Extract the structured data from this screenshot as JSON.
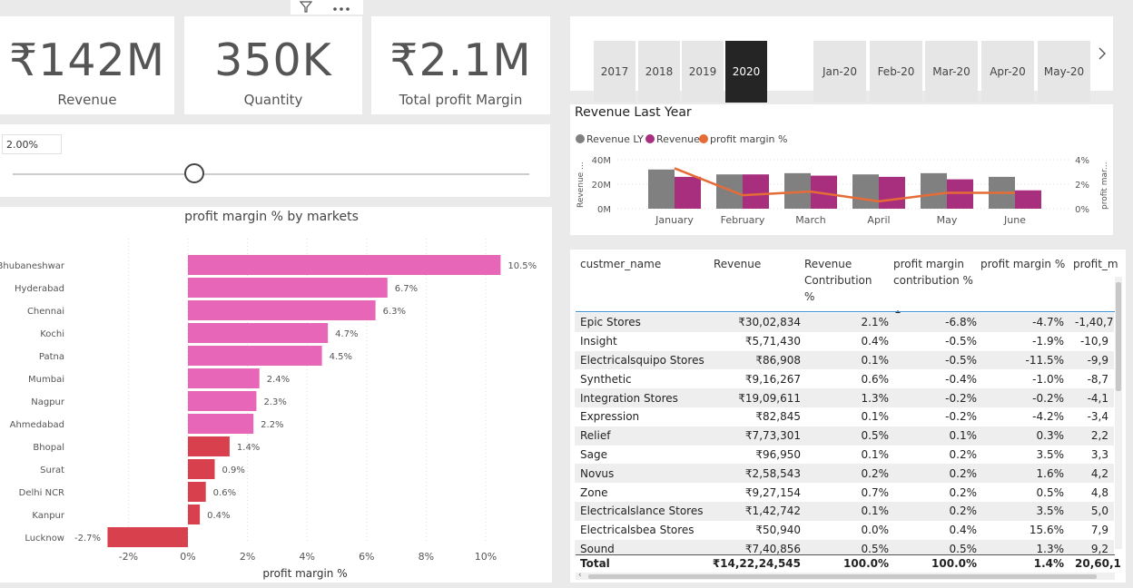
{
  "kpis": [
    {
      "value": "₹142M",
      "label": "Revenue"
    },
    {
      "value": "350K",
      "label": "Quantity"
    },
    {
      "value": "₹2.1M",
      "label": "Total profit Margin"
    }
  ],
  "slider": {
    "value_text": "2.00%"
  },
  "years": [
    "2017",
    "2018",
    "2019",
    "2020"
  ],
  "selected_year": "2020",
  "months": [
    "Jan-20",
    "Feb-20",
    "Mar-20",
    "Apr-20",
    "May-20"
  ],
  "bar_chart": {
    "title": "profit margin % by markets",
    "xlabel": "profit margin %"
  },
  "combo_chart": {
    "title": "Revenue Last Year",
    "ylabel_left": "Revenue ...",
    "ylabel_right": "profit mar..."
  },
  "colors": {
    "pink": "#e766b7",
    "red": "#d9404e",
    "gray": "#808080",
    "magenta": "#a72f7e",
    "orange": "#e66c37"
  },
  "table": {
    "headers": [
      "custmer_name",
      "Revenue",
      "Revenue Contribution %",
      "profit margin contribution %",
      "profit margin %",
      "profit_m"
    ],
    "rows": [
      [
        "Epic Stores",
        "₹30,02,834",
        "2.1%",
        "-6.8%",
        "-4.7%",
        "-1,40,7"
      ],
      [
        "Insight",
        "₹5,71,430",
        "0.4%",
        "-0.5%",
        "-1.9%",
        "-10,9"
      ],
      [
        "Electricalsquipo Stores",
        "₹86,908",
        "0.1%",
        "-0.5%",
        "-11.5%",
        "-9,9"
      ],
      [
        "Synthetic",
        "₹9,16,267",
        "0.6%",
        "-0.4%",
        "-1.0%",
        "-8,7"
      ],
      [
        "Integration Stores",
        "₹19,09,611",
        "1.3%",
        "-0.2%",
        "-0.2%",
        "-4,1"
      ],
      [
        "Expression",
        "₹82,845",
        "0.1%",
        "-0.2%",
        "-4.2%",
        "-3,4"
      ],
      [
        "Relief",
        "₹7,73,301",
        "0.5%",
        "0.1%",
        "0.3%",
        "2,2"
      ],
      [
        "Sage",
        "₹96,950",
        "0.1%",
        "0.2%",
        "3.5%",
        "3,3"
      ],
      [
        "Novus",
        "₹2,58,543",
        "0.2%",
        "0.2%",
        "1.6%",
        "4,2"
      ],
      [
        "Zone",
        "₹9,27,154",
        "0.7%",
        "0.2%",
        "0.5%",
        "4,8"
      ],
      [
        "Electricalslance Stores",
        "₹1,42,742",
        "0.1%",
        "0.2%",
        "3.5%",
        "5,0"
      ],
      [
        "Electricalsbea Stores",
        "₹50,940",
        "0.0%",
        "0.4%",
        "15.6%",
        "7,9"
      ],
      [
        "Sound",
        "₹7,40,856",
        "0.5%",
        "0.5%",
        "1.3%",
        "9,2"
      ]
    ],
    "total": [
      "Total",
      "₹14,22,24,545",
      "100.0%",
      "100.0%",
      "1.4%",
      "20,60,1"
    ]
  },
  "chart_data": [
    {
      "type": "bar",
      "title": "profit margin % by markets",
      "xlabel": "profit margin %",
      "categories": [
        "Bhubaneshwar",
        "Hyderabad",
        "Chennai",
        "Kochi",
        "Patna",
        "Mumbai",
        "Nagpur",
        "Ahmedabad",
        "Bhopal",
        "Surat",
        "Delhi NCR",
        "Kanpur",
        "Lucknow"
      ],
      "values": [
        10.5,
        6.7,
        6.3,
        4.7,
        4.5,
        2.4,
        2.3,
        2.2,
        1.4,
        0.9,
        0.6,
        0.4,
        -2.7
      ],
      "data_labels": [
        "10.5%",
        "6.7%",
        "6.3%",
        "4.7%",
        "4.5%",
        "2.4%",
        "2.3%",
        "2.2%",
        "1.4%",
        "0.9%",
        "0.6%",
        "0.4%",
        "-2.7%"
      ],
      "xticks": [
        "-2%",
        "0%",
        "2%",
        "4%",
        "6%",
        "8%",
        "10%"
      ],
      "xtick_values": [
        -2,
        0,
        2,
        4,
        6,
        8,
        10
      ],
      "xlim": [
        -3,
        11
      ],
      "threshold": 2.0,
      "grid": true
    },
    {
      "type": "bar",
      "title": "Revenue Last Year",
      "categories": [
        "January",
        "February",
        "March",
        "April",
        "May",
        "June"
      ],
      "series": [
        {
          "name": "Revenue LY",
          "values": [
            32,
            28,
            29,
            28,
            29,
            26
          ]
        },
        {
          "name": "Revenue",
          "values": [
            26,
            28,
            27,
            26,
            24,
            15
          ]
        },
        {
          "name": "profit margin %",
          "values": [
            3.3,
            1.1,
            1.4,
            0.6,
            1.3,
            1.3
          ]
        }
      ],
      "yticks_left": [
        "0M",
        "20M",
        "40M"
      ],
      "yticks_right": [
        "0%",
        "2%",
        "4%"
      ],
      "ylim_left": [
        0,
        40
      ],
      "ylim_right": [
        0,
        4
      ],
      "legend": "top-left"
    }
  ]
}
